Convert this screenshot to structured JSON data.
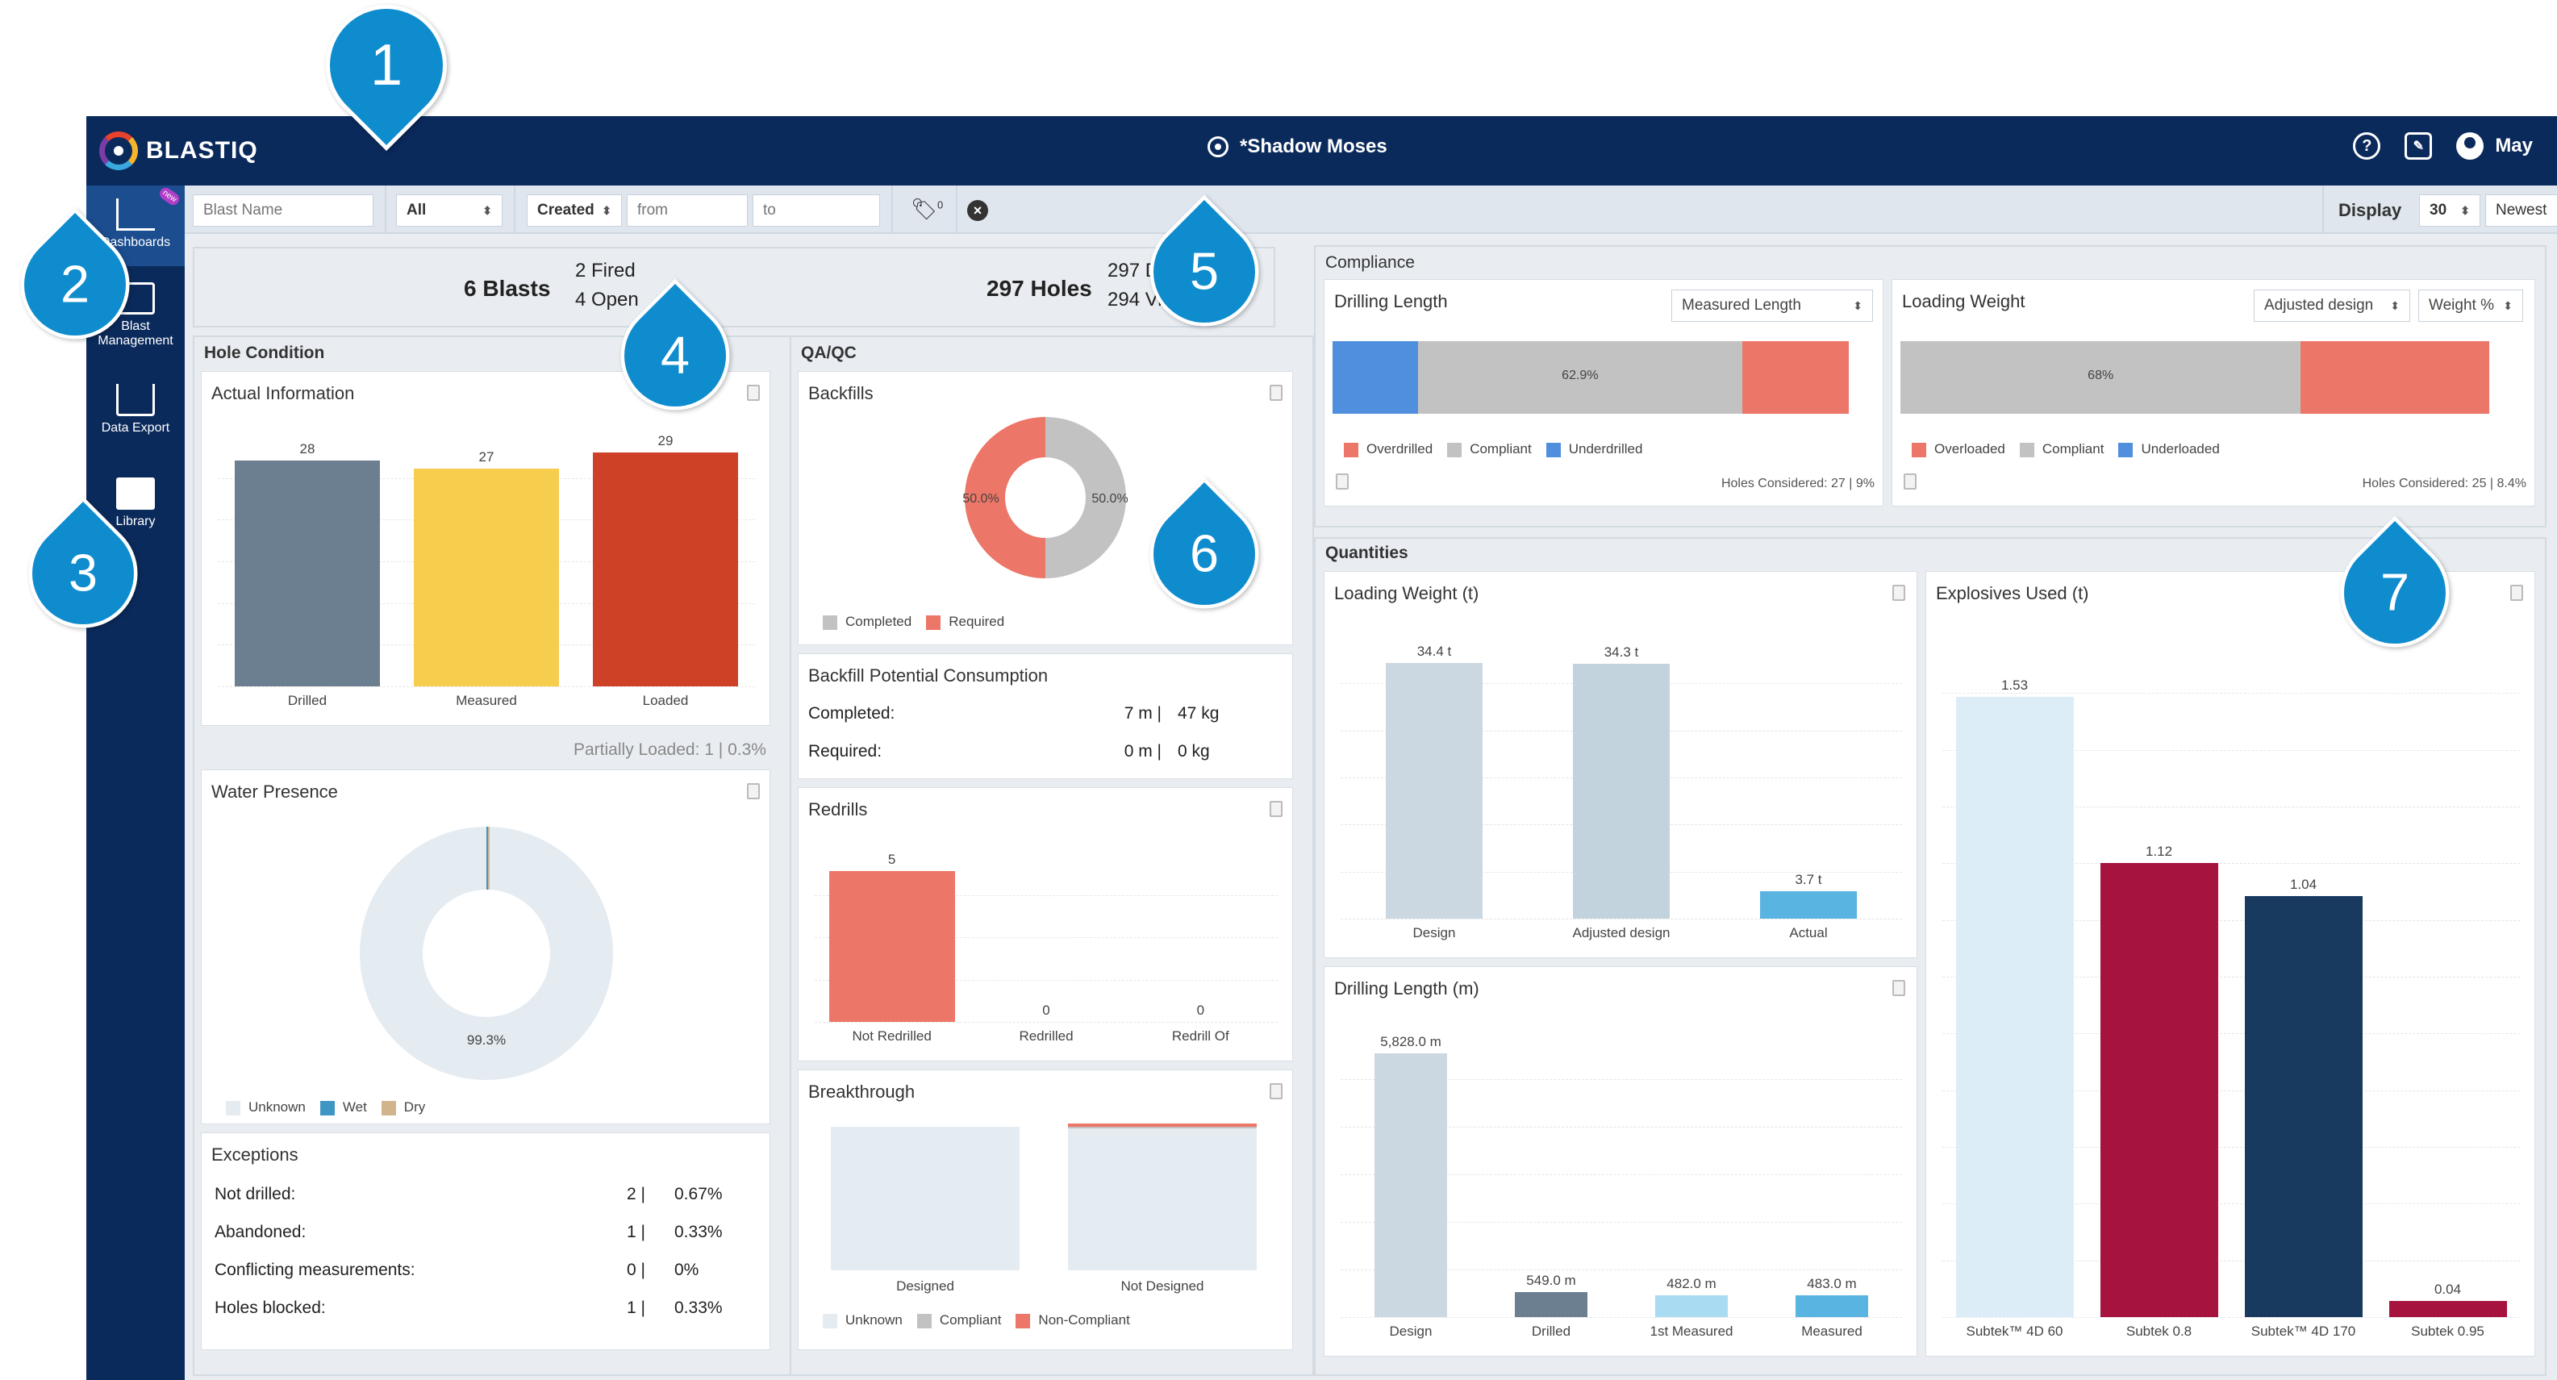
{
  "topbar": {
    "logo_text": "BLASTIQ",
    "project": "*Shadow Moses",
    "user": "May"
  },
  "sidebar": {
    "items": [
      {
        "label": "Dashboards",
        "badge": "new"
      },
      {
        "label": "Blast\nManagement"
      },
      {
        "label": "Data Export"
      },
      {
        "label": "Library"
      }
    ]
  },
  "filters": {
    "blast_name_placeholder": "Blast Name",
    "status_value": "All",
    "date_field": "Created",
    "from_placeholder": "from",
    "to_placeholder": "to",
    "tag_count": "0",
    "display_label": "Display",
    "display_count": "30",
    "sort_order": "Newest"
  },
  "summary": {
    "blasts": "6 Blasts",
    "fired": "2 Fired",
    "open": "4 Open",
    "holes": "297 Holes",
    "designed": "297 Designed",
    "viable": "294 Viable"
  },
  "hole_condition": {
    "title": "Hole Condition",
    "actual_title": "Actual Information",
    "bars": [
      {
        "label": "Drilled",
        "value": 28,
        "color": "#6b7f90"
      },
      {
        "label": "Measured",
        "value": 27,
        "color": "#f7cd4e"
      },
      {
        "label": "Loaded",
        "value": 29,
        "color": "#cf4127"
      }
    ],
    "partially_loaded": "Partially Loaded: 1 | 0.3%",
    "water_title": "Water Presence",
    "water_pct": "99.3%",
    "water_legend": [
      {
        "label": "Unknown",
        "color": "#e4ebf1"
      },
      {
        "label": "Wet",
        "color": "#3f95c4"
      },
      {
        "label": "Dry",
        "color": "#d2b48c"
      }
    ],
    "exceptions_title": "Exceptions",
    "exceptions": [
      {
        "label": "Not drilled:",
        "count": "2",
        "pct": "0.67%"
      },
      {
        "label": "Abandoned:",
        "count": "1",
        "pct": "0.33%"
      },
      {
        "label": "Conflicting measurements:",
        "count": "0",
        "pct": "0%"
      },
      {
        "label": "Holes blocked:",
        "count": "1",
        "pct": "0.33%"
      }
    ]
  },
  "qaqc": {
    "title": "QA/QC",
    "backfills_title": "Backfills",
    "backfill_left": "50.0%",
    "backfill_right": "50.0%",
    "backfill_legend": [
      {
        "label": "Completed",
        "color": "#c2c2c2"
      },
      {
        "label": "Required",
        "color": "#ec7667"
      }
    ],
    "consumption_title": "Backfill Potential Consumption",
    "consumption": [
      {
        "label": "Completed:",
        "length": "7 m",
        "weight": "47 kg"
      },
      {
        "label": "Required:",
        "length": "0 m",
        "weight": "0 kg"
      }
    ],
    "redrills_title": "Redrills",
    "redrills": [
      {
        "label": "Not Redrilled",
        "value": 5
      },
      {
        "label": "Redrilled",
        "value": 0
      },
      {
        "label": "Redrill Of",
        "value": 0
      }
    ],
    "breakthrough_title": "Breakthrough",
    "breakthrough": [
      {
        "label": "Designed"
      },
      {
        "label": "Not Designed"
      }
    ],
    "breakthrough_legend": [
      {
        "label": "Unknown",
        "color": "#e4ebf1"
      },
      {
        "label": "Compliant",
        "color": "#c2c2c2"
      },
      {
        "label": "Non-Compliant",
        "color": "#ec7667"
      }
    ]
  },
  "compliance": {
    "title": "Compliance",
    "drilling": {
      "title": "Drilling Length",
      "select": "Measured Length",
      "center_label": "62.9%",
      "segments": [
        0.165,
        0.629,
        0.206
      ],
      "legend": [
        {
          "label": "Overdrilled",
          "color": "#ec7667"
        },
        {
          "label": "Compliant",
          "color": "#c2c2c2"
        },
        {
          "label": "Underdrilled",
          "color": "#4f8fde"
        }
      ],
      "considered": "Holes Considered: 27 | 9%"
    },
    "loading": {
      "title": "Loading Weight",
      "select1": "Adjusted design",
      "select2": "Weight %",
      "center_label": "68%",
      "segments": [
        0.68,
        0.32
      ],
      "legend": [
        {
          "label": "Overloaded",
          "color": "#ec7667"
        },
        {
          "label": "Compliant",
          "color": "#c2c2c2"
        },
        {
          "label": "Underloaded",
          "color": "#4f8fde"
        }
      ],
      "considered": "Holes Considered: 25 | 8.4%"
    }
  },
  "quantities": {
    "title": "Quantities",
    "loading_title": "Loading Weight (t)",
    "loading": [
      {
        "label": "Design",
        "value": 34.4,
        "text": "34.4 t",
        "color": "#ccd8e1"
      },
      {
        "label": "Adjusted design",
        "value": 34.3,
        "text": "34.3 t",
        "color": "#c2d3dd"
      },
      {
        "label": "Actual",
        "value": 3.7,
        "text": "3.7 t",
        "color": "#5ab4e2"
      }
    ],
    "drilling_title": "Drilling Length (m)",
    "drilling": [
      {
        "label": "Design",
        "value": 5828.0,
        "text": "5,828.0 m",
        "color": "#ccd8e1"
      },
      {
        "label": "Drilled",
        "value": 549.0,
        "text": "549.0 m",
        "color": "#6b7f90"
      },
      {
        "label": "1st Measured",
        "value": 482.0,
        "text": "482.0 m",
        "color": "#a9dbf2"
      },
      {
        "label": "Measured",
        "value": 483.0,
        "text": "483.0 m",
        "color": "#5ab4e2"
      }
    ],
    "explosives_title": "Explosives Used (t)",
    "explosives": [
      {
        "label": "Subtek™ 4D 60",
        "value": 1.53,
        "text": "1.53",
        "color": "#dcedf8"
      },
      {
        "label": "Subtek 0.8",
        "value": 1.12,
        "text": "1.12",
        "color": "#a5133e"
      },
      {
        "label": "Subtek™ 4D 170",
        "value": 1.04,
        "text": "1.04",
        "color": "#183a5e"
      },
      {
        "label": "Subtek 0.95",
        "value": 0.04,
        "text": "0.04",
        "color": "#a5133e"
      }
    ]
  },
  "callouts": [
    "1",
    "2",
    "3",
    "4",
    "5",
    "6",
    "7"
  ]
}
